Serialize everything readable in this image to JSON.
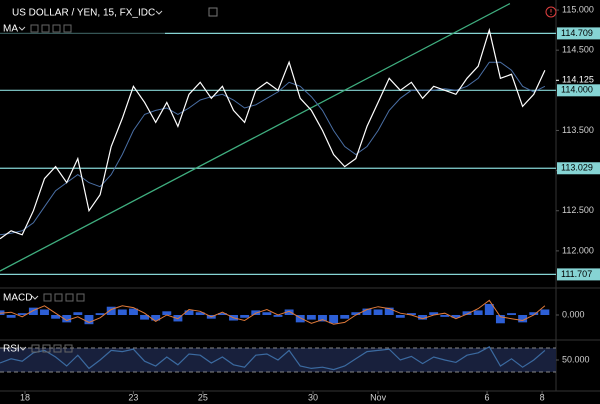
{
  "chart_data": [
    {
      "type": "line",
      "title": "US DOLLAR / YEN, 15, FX_IDC",
      "x": [
        0,
        2,
        4,
        6,
        8,
        10,
        12,
        14,
        16,
        18,
        20,
        22,
        24,
        26,
        28,
        30,
        32,
        34,
        36,
        38,
        40,
        42,
        44,
        46,
        48,
        50,
        52,
        54,
        56,
        58,
        60,
        62,
        64,
        66,
        68,
        70,
        72,
        74,
        76,
        78,
        80,
        82,
        84,
        86,
        88,
        90,
        92,
        94,
        96,
        98
      ],
      "series": [
        {
          "color": "#ffffff",
          "values": [
            112.15,
            112.25,
            112.2,
            112.5,
            112.9,
            113.05,
            112.85,
            113.15,
            112.5,
            112.7,
            113.3,
            113.65,
            114.05,
            113.85,
            113.6,
            113.85,
            113.55,
            113.95,
            114.1,
            113.9,
            114.05,
            113.75,
            113.6,
            114.0,
            114.1,
            114.0,
            114.35,
            113.9,
            113.75,
            113.5,
            113.2,
            113.05,
            113.15,
            113.55,
            113.85,
            114.15,
            114.0,
            114.1,
            113.9,
            114.05,
            114.0,
            113.95,
            114.15,
            114.3,
            114.75,
            114.15,
            114.2,
            113.8,
            113.95,
            114.25
          ]
        },
        {
          "name": "MA",
          "color": "#4a6fa5",
          "values": [
            112.2,
            112.22,
            112.25,
            112.35,
            112.55,
            112.75,
            112.85,
            112.95,
            112.85,
            112.8,
            112.95,
            113.2,
            113.5,
            113.7,
            113.75,
            113.78,
            113.7,
            113.78,
            113.88,
            113.92,
            113.95,
            113.88,
            113.78,
            113.82,
            113.9,
            113.98,
            114.1,
            114.05,
            113.92,
            113.75,
            113.5,
            113.3,
            113.2,
            113.3,
            113.5,
            113.75,
            113.9,
            114.0,
            114.0,
            114.0,
            114.02,
            114.0,
            114.05,
            114.15,
            114.35,
            114.35,
            114.25,
            114.05,
            113.98,
            114.05
          ]
        }
      ],
      "xlim": [
        0,
        100
      ],
      "xticks": [
        {
          "value": 4.5,
          "label": "18"
        },
        {
          "value": 24,
          "label": "23"
        },
        {
          "value": 36.5,
          "label": "25"
        },
        {
          "value": 56.3,
          "label": "30"
        },
        {
          "value": 68,
          "label": "Nov"
        },
        {
          "value": 87.6,
          "label": "6"
        },
        {
          "value": 97.5,
          "label": "8"
        }
      ],
      "ylim": [
        111.575,
        115.125
      ],
      "yticks": [
        {
          "value": 115,
          "label": "115.000"
        },
        {
          "value": 114.5,
          "label": "114.500"
        },
        {
          "value": 113.5,
          "label": "113.500"
        },
        {
          "value": 113,
          "label": "113.000"
        },
        {
          "value": 112.5,
          "label": "112.500"
        },
        {
          "value": 112,
          "label": "112.000"
        }
      ],
      "levels": [
        114.709,
        {
          "value": 114,
          "label": "114.000"
        },
        113.029,
        111.707
      ],
      "level_color": "#86d4d4",
      "last_price": 114.125,
      "trendline": {
        "color": "#3fae7f",
        "x": [
          0,
          91.7
        ],
        "values": [
          111.75,
          115.08
        ]
      }
    },
    {
      "type": "macd",
      "title": "MACD",
      "ylim": [
        -0.25,
        0.25
      ],
      "yticks": [
        {
          "value": 0,
          "label": "0.000"
        }
      ],
      "series": [
        {
          "color": "#2d5fd6",
          "values": [
            0.05,
            -0.03,
            0.02,
            0.08,
            0.06,
            -0.04,
            -0.08,
            0.03,
            -0.1,
            0.02,
            0.09,
            0.06,
            0.07,
            -0.05,
            -0.06,
            0.04,
            -0.07,
            0.05,
            0.03,
            -0.04,
            0.02,
            -0.06,
            -0.03,
            0.05,
            0.03,
            -0.02,
            0.06,
            -0.08,
            -0.05,
            -0.07,
            -0.09,
            -0.04,
            0.03,
            0.07,
            0.06,
            0.08,
            -0.03,
            0.02,
            -0.05,
            0.03,
            -0.02,
            -0.03,
            0.04,
            0.05,
            0.12,
            -0.09,
            0.02,
            -0.08,
            0.03,
            0.06
          ]
        },
        {
          "color": "#e07a3a",
          "values": [
            0.02,
            0.03,
            -0.02,
            0.05,
            0.1,
            0.02,
            -0.06,
            -0.02,
            -0.08,
            -0.03,
            0.06,
            0.1,
            0.08,
            0.02,
            -0.07,
            0.0,
            -0.04,
            0.06,
            0.04,
            -0.02,
            0.03,
            -0.03,
            -0.06,
            0.02,
            0.06,
            0.0,
            0.04,
            -0.03,
            -0.09,
            -0.05,
            -0.1,
            -0.08,
            0.0,
            0.06,
            0.09,
            0.07,
            0.02,
            0.0,
            -0.04,
            0.0,
            0.02,
            -0.04,
            0.01,
            0.07,
            0.16,
            -0.02,
            -0.04,
            -0.06,
            0.0,
            0.1
          ]
        }
      ]
    },
    {
      "type": "rsi",
      "title": "RSI",
      "ylim": [
        0,
        80
      ],
      "yticks": [
        {
          "value": 50,
          "label": "50.000"
        }
      ],
      "bands": [
        30,
        70
      ],
      "series": [
        {
          "color": "#3b6aa0",
          "values": [
            45,
            52,
            48,
            62,
            66,
            55,
            40,
            58,
            36,
            50,
            66,
            64,
            68,
            48,
            40,
            55,
            42,
            60,
            58,
            45,
            55,
            42,
            38,
            58,
            60,
            50,
            66,
            40,
            36,
            38,
            34,
            40,
            52,
            64,
            66,
            68,
            50,
            56,
            44,
            55,
            50,
            46,
            58,
            62,
            72,
            40,
            52,
            38,
            50,
            66
          ]
        }
      ]
    }
  ]
}
